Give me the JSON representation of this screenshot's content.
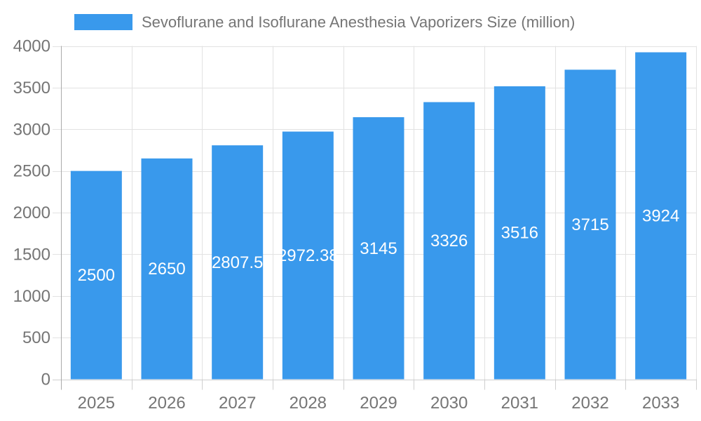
{
  "chart_data": {
    "type": "bar",
    "title": "Sevoflurane and Isoflurane Anesthesia Vaporizers Size (million)",
    "series_name": "Sevoflurane and Isoflurane Anesthesia Vaporizers Size (million)",
    "categories": [
      "2025",
      "2026",
      "2027",
      "2028",
      "2029",
      "2030",
      "2031",
      "2032",
      "2033"
    ],
    "values": [
      2500,
      2650,
      2807.5,
      2972.38,
      3145,
      3326,
      3516,
      3715,
      3924
    ],
    "value_labels": [
      "2500",
      "2650",
      "2807.5",
      "2972.38",
      "3145",
      "3326",
      "3516",
      "3715",
      "3924"
    ],
    "xlabel": "",
    "ylabel": "",
    "ylim": [
      0,
      4000
    ],
    "ytick_step": 500,
    "yticks": [
      "0",
      "500",
      "1000",
      "1500",
      "2000",
      "2500",
      "3000",
      "3500",
      "4000"
    ],
    "grid": true,
    "legend_position": "top-left",
    "colors": {
      "bar": "#3999ec",
      "value_label": "#ffffff",
      "axis_text": "#757575",
      "grid": "#e2e2e2",
      "baseline": "#cfcfcf",
      "axis_line": "#aaaaaa"
    }
  }
}
